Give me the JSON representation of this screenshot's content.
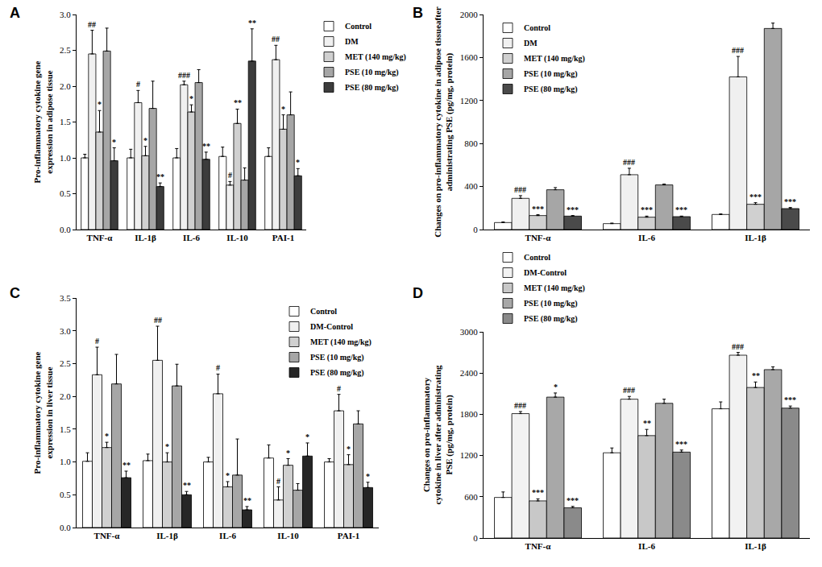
{
  "chart_data": [
    {
      "type": "bar",
      "panel": "A",
      "ylabel": [
        "Pro-inflammatory cytokine gene",
        "expression in adipose tissue"
      ],
      "categories": [
        "TNF-α",
        "IL-1β",
        "IL-6",
        "IL-10",
        "PAI-1"
      ],
      "ylim": [
        0,
        3
      ],
      "yticks": [
        {
          "value": 0,
          "label": "0.0"
        },
        0.5,
        {
          "value": 1,
          "label": "1.0"
        },
        1.5,
        {
          "value": 2,
          "label": "2.0"
        },
        2.5,
        {
          "value": 3,
          "label": "3.0"
        }
      ],
      "grid": false,
      "legend": "right",
      "series": [
        {
          "name": "Control",
          "color": "#ffffff",
          "values": [
            1.0,
            1.0,
            1.0,
            1.02,
            1.02
          ],
          "errors": [
            0.05,
            0.12,
            0.13,
            0.13,
            0.12
          ]
        },
        {
          "name": "DM",
          "color": "#f0f0f0",
          "values": [
            2.45,
            1.77,
            2.02,
            0.62,
            2.37
          ],
          "errors": [
            0.33,
            0.17,
            0.05,
            0.05,
            0.2
          ],
          "significance": [
            "##",
            "#",
            "###",
            "#",
            "##"
          ]
        },
        {
          "name": "MET (140 mg/kg)",
          "color": "#d0d0d0",
          "values": [
            1.36,
            1.03,
            1.64,
            1.48,
            1.4
          ],
          "errors": [
            0.3,
            0.13,
            0.1,
            0.2,
            0.2
          ],
          "significance": [
            "*",
            "*",
            "*",
            "**",
            "*"
          ]
        },
        {
          "name": "PSE (10 mg/kg)",
          "color": "#a6a6a6",
          "values": [
            2.49,
            1.69,
            2.05,
            0.69,
            1.6
          ],
          "errors": [
            0.32,
            0.38,
            0.18,
            0.17,
            0.32
          ]
        },
        {
          "name": "PSE (80 mg/kg)",
          "color": "#3c3c3c",
          "values": [
            0.96,
            0.6,
            0.98,
            2.35,
            0.75
          ],
          "errors": [
            0.18,
            0.05,
            0.1,
            0.45,
            0.1
          ],
          "significance": [
            "*",
            "**",
            "**",
            "**",
            "*"
          ]
        }
      ]
    },
    {
      "type": "bar",
      "panel": "B",
      "ylabel": [
        "Changes on pro-inflammatory cytokine in adipose tissueafter",
        "administrating PSE (pg/mg, protein)"
      ],
      "categories": [
        "TNF-α",
        "IL-6",
        "IL-1β"
      ],
      "ylim": [
        0,
        2000
      ],
      "yticks": [
        0,
        400,
        800,
        1200,
        1600,
        2000
      ],
      "grid": false,
      "legend": "top left",
      "series": [
        {
          "name": "Control",
          "color": "#ffffff",
          "values": [
            65,
            55,
            140
          ],
          "errors": [
            5,
            5,
            5
          ]
        },
        {
          "name": "DM",
          "color": "#f0f0f0",
          "values": [
            290,
            510,
            1420
          ],
          "errors": [
            25,
            60,
            190
          ],
          "significance": [
            "###",
            "###",
            "###"
          ]
        },
        {
          "name": "MET (140 mg/kg)",
          "color": "#d0d0d0",
          "values": [
            130,
            115,
            235
          ],
          "errors": [
            8,
            10,
            15
          ],
          "significance": [
            "***",
            "***",
            "***"
          ]
        },
        {
          "name": "PSE (10 mg/kg)",
          "color": "#a6a6a6",
          "values": [
            370,
            415,
            1870
          ],
          "errors": [
            20,
            8,
            50
          ]
        },
        {
          "name": "PSE (80 mg/kg)",
          "color": "#4a4a4a",
          "values": [
            125,
            120,
            195
          ],
          "errors": [
            5,
            5,
            10
          ],
          "significance": [
            "***",
            "***",
            "***"
          ]
        }
      ]
    },
    {
      "type": "bar",
      "panel": "C",
      "ylabel": [
        "Pro-inflammatory cytokine gene",
        "expression in liver tissue"
      ],
      "categories": [
        "TNF-α",
        "IL-1β",
        "IL-6",
        "IL-10",
        "PAI-1"
      ],
      "ylim": [
        0,
        3.5
      ],
      "yticks": [
        {
          "value": 0,
          "label": "0.0"
        },
        0.5,
        {
          "value": 1,
          "label": "1.0"
        },
        1.5,
        {
          "value": 2,
          "label": "2.0"
        },
        2.5,
        {
          "value": 3,
          "label": "3.0"
        },
        3.5
      ],
      "grid": false,
      "legend": "top right",
      "series": [
        {
          "name": "Control",
          "color": "#ffffff",
          "values": [
            1.01,
            1.02,
            1.0,
            1.06,
            1.0
          ],
          "errors": [
            0.13,
            0.1,
            0.07,
            0.2,
            0.05
          ]
        },
        {
          "name": "DM-Control",
          "color": "#f0f0f0",
          "values": [
            2.33,
            2.55,
            2.04,
            0.42,
            1.78
          ],
          "errors": [
            0.42,
            0.52,
            0.3,
            0.2,
            0.25
          ],
          "significance": [
            "#",
            "##",
            "#",
            "#",
            "#"
          ]
        },
        {
          "name": "MET (140 mg/kg)",
          "color": "#d0d0d0",
          "values": [
            1.22,
            1.0,
            0.62,
            0.95,
            0.96
          ],
          "errors": [
            0.08,
            0.14,
            0.08,
            0.1,
            0.15
          ],
          "significance": [
            "*",
            "*",
            "*",
            "*",
            "*"
          ]
        },
        {
          "name": "PSE (10 mg/kg)",
          "color": "#a6a6a6",
          "values": [
            2.19,
            2.16,
            0.8,
            0.57,
            1.58
          ],
          "errors": [
            0.45,
            0.33,
            0.55,
            0.1,
            0.2
          ]
        },
        {
          "name": "PSE (80 mg/kg)",
          "color": "#262626",
          "values": [
            0.76,
            0.5,
            0.27,
            1.09,
            0.61
          ],
          "errors": [
            0.1,
            0.05,
            0.05,
            0.2,
            0.08
          ],
          "significance": [
            "**",
            "**",
            "**",
            "*",
            "*"
          ]
        }
      ]
    },
    {
      "type": "bar",
      "panel": "D",
      "ylabel": [
        "Changes on pro-inflammatory",
        "cytokine in liver after administrating",
        "PSE (pg/mg, protein)"
      ],
      "categories": [
        "TNF-α",
        "IL-6",
        "IL-1β"
      ],
      "ylim": [
        0,
        3000
      ],
      "yticks": [
        0,
        600,
        1200,
        1800,
        2400,
        3000
      ],
      "grid": false,
      "legend": "above",
      "series": [
        {
          "name": "Control",
          "color": "#ffffff",
          "values": [
            590,
            1240,
            1880
          ],
          "errors": [
            80,
            70,
            100
          ]
        },
        {
          "name": "DM-Control",
          "color": "#f2f2f2",
          "values": [
            1810,
            2020,
            2660
          ],
          "errors": [
            30,
            40,
            40
          ],
          "significance": [
            "###",
            "###",
            "###"
          ]
        },
        {
          "name": "MET (140 mg/kg)",
          "color": "#c8c8c8",
          "values": [
            540,
            1490,
            2190
          ],
          "errors": [
            30,
            90,
            80
          ],
          "significance": [
            "***",
            "**",
            "**"
          ]
        },
        {
          "name": "PSE (10 mg/kg)",
          "color": "#a8a8a8",
          "values": [
            2050,
            1960,
            2450
          ],
          "errors": [
            60,
            60,
            40
          ],
          "significance": [
            "*",
            null,
            null
          ]
        },
        {
          "name": "PSE (80 mg/kg)",
          "color": "#8a8a8a",
          "values": [
            440,
            1250,
            1890
          ],
          "errors": [
            20,
            30,
            30
          ],
          "significance": [
            "***",
            "***",
            "***"
          ]
        }
      ]
    }
  ]
}
